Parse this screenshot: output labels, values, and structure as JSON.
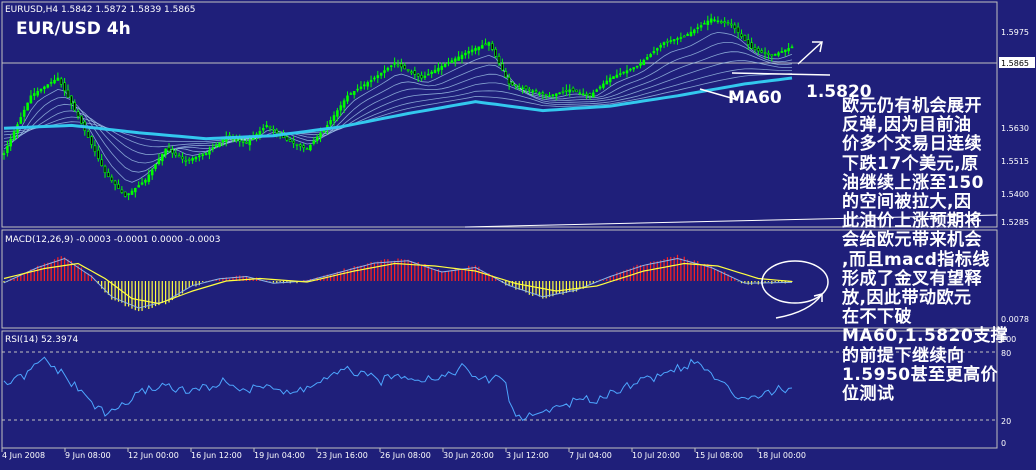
{
  "window": {
    "symbol_info": "EURUSD,H4  1.5842 1.5872 1.5839 1.5865",
    "big_title": "EUR/USD 4h",
    "macd_label": "MACD(12,26,9) -0.0003 -0.0001 0.0000 -0.0003",
    "rsi_label": "RSI(14) 52.3974"
  },
  "colors": {
    "background": "#1f1f7a",
    "frame": "#c0c0c0",
    "candles": "#00ff00",
    "ma60": "#33c8ee",
    "ribbon": "#a8d0f0",
    "macd_pos": "#ff2020",
    "macd_neg": "#ffff40",
    "signal": "#ffff40",
    "rsi": "#4da6ff"
  },
  "annotations": {
    "ma60_label": "MA60",
    "support_label": "1.5820",
    "commentary": [
      "欧元仍有机会展开",
      "反弹,因为目前油",
      "价多个交易日连续",
      "下跌17个美元,原",
      "油继续上涨至150",
      "的空间被拉大,因",
      "此油价上涨预期将",
      "会给欧元带来机会",
      ",而且macd指标线",
      "形成了金叉有望释",
      "放,因此带动欧元",
      "在不下破",
      "MA60,1.5820支撑",
      "的前提下继续向",
      "1.5950甚至更高价",
      "位测试"
    ]
  },
  "price_axis": {
    "ticks": [
      "1.5975",
      "1.5865",
      "1.5630",
      "1.5515",
      "1.5400",
      "1.5285"
    ],
    "current_price": "1.5865"
  },
  "macd_axis": {
    "ticks": [
      "0.0078"
    ]
  },
  "rsi_axis": {
    "ticks": [
      "100",
      "80",
      "20",
      "0"
    ]
  },
  "chart_data": {
    "type": "candlestick",
    "title": "EUR/USD 4h",
    "x_tick_labels": [
      "4 Jun 2008",
      "9 Jun 08:00",
      "12 Jun 00:00",
      "16 Jun 12:00",
      "19 Jun 04:00",
      "23 Jun 16:00",
      "26 Jun 08:00",
      "30 Jun 20:00",
      "3 Jul 12:00",
      "7 Jul 04:00",
      "10 Jul 20:00",
      "15 Jul 08:00",
      "18 Jul 00:00"
    ],
    "ylim": [
      1.526,
      1.601
    ],
    "price_close_series": {
      "name": "EURUSD,H4",
      "x_index": [
        0,
        8,
        16,
        22,
        30,
        36,
        42,
        48,
        54,
        60,
        66,
        72,
        78,
        84,
        90,
        96,
        102,
        110,
        116,
        124,
        130,
        138,
        144,
        150,
        156,
        162,
        168,
        174,
        180,
        188,
        196,
        202,
        210,
        216,
        222,
        228,
        234
      ],
      "values": [
        1.5505,
        1.57,
        1.576,
        1.563,
        1.544,
        1.536,
        1.5415,
        1.552,
        1.548,
        1.5505,
        1.556,
        1.554,
        1.56,
        1.555,
        1.552,
        1.56,
        1.57,
        1.576,
        1.581,
        1.576,
        1.58,
        1.585,
        1.588,
        1.574,
        1.572,
        1.57,
        1.572,
        1.57,
        1.576,
        1.58,
        1.588,
        1.59,
        1.596,
        1.594,
        1.586,
        1.5835,
        1.5865
      ]
    },
    "ma60_series": {
      "name": "MA60",
      "x_index": [
        0,
        20,
        40,
        60,
        80,
        100,
        120,
        140,
        160,
        180,
        200,
        220,
        234
      ],
      "values": [
        1.559,
        1.56,
        1.5575,
        1.5555,
        1.5565,
        1.5595,
        1.564,
        1.568,
        1.565,
        1.5665,
        1.57,
        1.574,
        1.576
      ]
    },
    "support_level": 1.582,
    "macd": {
      "main_x_index": [
        0,
        10,
        18,
        26,
        32,
        40,
        48,
        56,
        64,
        72,
        80,
        90,
        100,
        110,
        120,
        130,
        140,
        150,
        160,
        170,
        180,
        190,
        200,
        210,
        220,
        234
      ],
      "main_values": [
        -0.0004,
        0.003,
        0.005,
        0.001,
        -0.0035,
        -0.006,
        -0.0045,
        -0.001,
        0.0005,
        0.001,
        -0.0005,
        0.0,
        0.002,
        0.004,
        0.0045,
        0.002,
        0.003,
        -0.001,
        -0.0035,
        -0.002,
        0.001,
        0.0035,
        0.005,
        0.003,
        -0.0005,
        -0.0003
      ],
      "signal_x_index": [
        0,
        12,
        22,
        30,
        38,
        46,
        56,
        66,
        76,
        90,
        104,
        116,
        128,
        140,
        152,
        164,
        176,
        190,
        202,
        212,
        224,
        234
      ],
      "signal_values": [
        0.0005,
        0.0025,
        0.0035,
        0.0005,
        -0.0035,
        -0.0045,
        -0.002,
        0.0,
        0.0005,
        -0.0002,
        0.002,
        0.0035,
        0.003,
        0.002,
        -0.0005,
        -0.002,
        -0.001,
        0.002,
        0.0035,
        0.003,
        0.0005,
        -0.0001
      ]
    },
    "rsi": {
      "x_index": [
        0,
        6,
        12,
        18,
        24,
        30,
        36,
        42,
        48,
        54,
        60,
        66,
        72,
        78,
        84,
        90,
        96,
        102,
        108,
        112,
        118,
        124,
        130,
        136,
        142,
        148,
        152,
        158,
        164,
        170,
        176,
        182,
        188,
        194,
        200,
        206,
        212,
        218,
        224,
        230,
        234
      ],
      "values": [
        55,
        62,
        78,
        62,
        45,
        28,
        38,
        50,
        55,
        48,
        52,
        58,
        48,
        56,
        46,
        52,
        60,
        68,
        62,
        58,
        64,
        60,
        62,
        70,
        58,
        62,
        25,
        28,
        35,
        40,
        42,
        50,
        58,
        62,
        70,
        75,
        58,
        44,
        46,
        50,
        52
      ]
    }
  }
}
